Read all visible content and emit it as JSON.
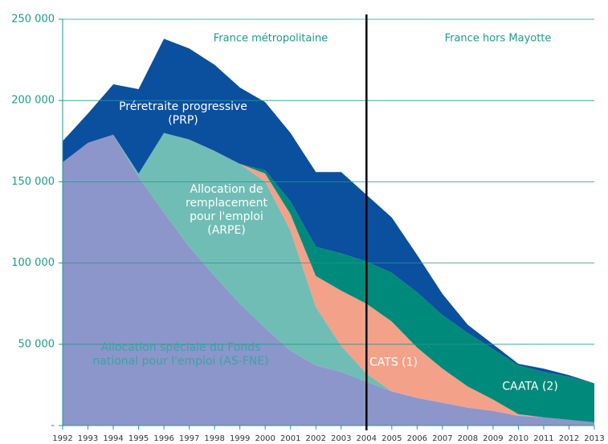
{
  "chart_data": {
    "type": "stacked_area",
    "categories": [
      1992,
      1993,
      1994,
      1995,
      1996,
      1997,
      1998,
      1999,
      2000,
      2001,
      2002,
      2003,
      2004,
      2005,
      2006,
      2007,
      2008,
      2009,
      2010,
      2011,
      2012,
      2013
    ],
    "series": [
      {
        "name": "Allocation spéciale du Fonds national pour l'emploi (AS-FNE)",
        "color": "#8c96cb",
        "label_color": "#3aa3a6",
        "values": [
          162000,
          174000,
          179000,
          153000,
          131000,
          110000,
          92000,
          75000,
          60000,
          46000,
          37000,
          33000,
          27000,
          21000,
          17000,
          14000,
          11000,
          9000,
          6000,
          5000,
          3500,
          2000
        ]
      },
      {
        "name": "Allocation de remplacement pour l'emploi (ARPE)",
        "color": "#70bdb5",
        "label_color": "#ffffff",
        "values": [
          0,
          0,
          0,
          2000,
          49000,
          66000,
          77000,
          86000,
          90000,
          74000,
          36000,
          16000,
          5000,
          0,
          0,
          0,
          0,
          0,
          0,
          0,
          0,
          0
        ]
      },
      {
        "name": "CATS (1)",
        "color": "#f4a18a",
        "label_color": "#ffffff",
        "values": [
          0,
          0,
          0,
          0,
          0,
          0,
          0,
          0,
          5000,
          10000,
          19000,
          34000,
          43000,
          43000,
          31000,
          21000,
          13000,
          7000,
          1000,
          0,
          0,
          0
        ]
      },
      {
        "name": "CAATA (2)",
        "color": "#008a7b",
        "label_color": "#ffffff",
        "values": [
          0,
          0,
          0,
          0,
          0,
          0,
          0,
          0,
          2000,
          8000,
          18000,
          23000,
          26000,
          30000,
          34000,
          33000,
          33000,
          31000,
          30000,
          28000,
          26500,
          24000
        ]
      },
      {
        "name": "Préretraite progressive (PRP)",
        "color": "#0b4f9f",
        "label_color": "#ffffff",
        "values": [
          13000,
          18000,
          31000,
          52000,
          58000,
          56000,
          53000,
          47000,
          42000,
          42000,
          46000,
          50000,
          41000,
          34000,
          23000,
          13000,
          5000,
          3000,
          1000,
          2000,
          1000,
          0
        ]
      }
    ],
    "ylim": [
      0,
      250000
    ],
    "yticks": [
      {
        "value": 0,
        "label": "-"
      },
      {
        "value": 50000,
        "label": "50 000"
      },
      {
        "value": 100000,
        "label": "100 000"
      },
      {
        "value": 150000,
        "label": "150 000"
      },
      {
        "value": 200000,
        "label": "200 000"
      },
      {
        "value": 250000,
        "label": "250 000"
      }
    ],
    "grid": true,
    "divider": 2004,
    "regions": [
      "France métropolitaine",
      "France hors Mayotte"
    ]
  }
}
